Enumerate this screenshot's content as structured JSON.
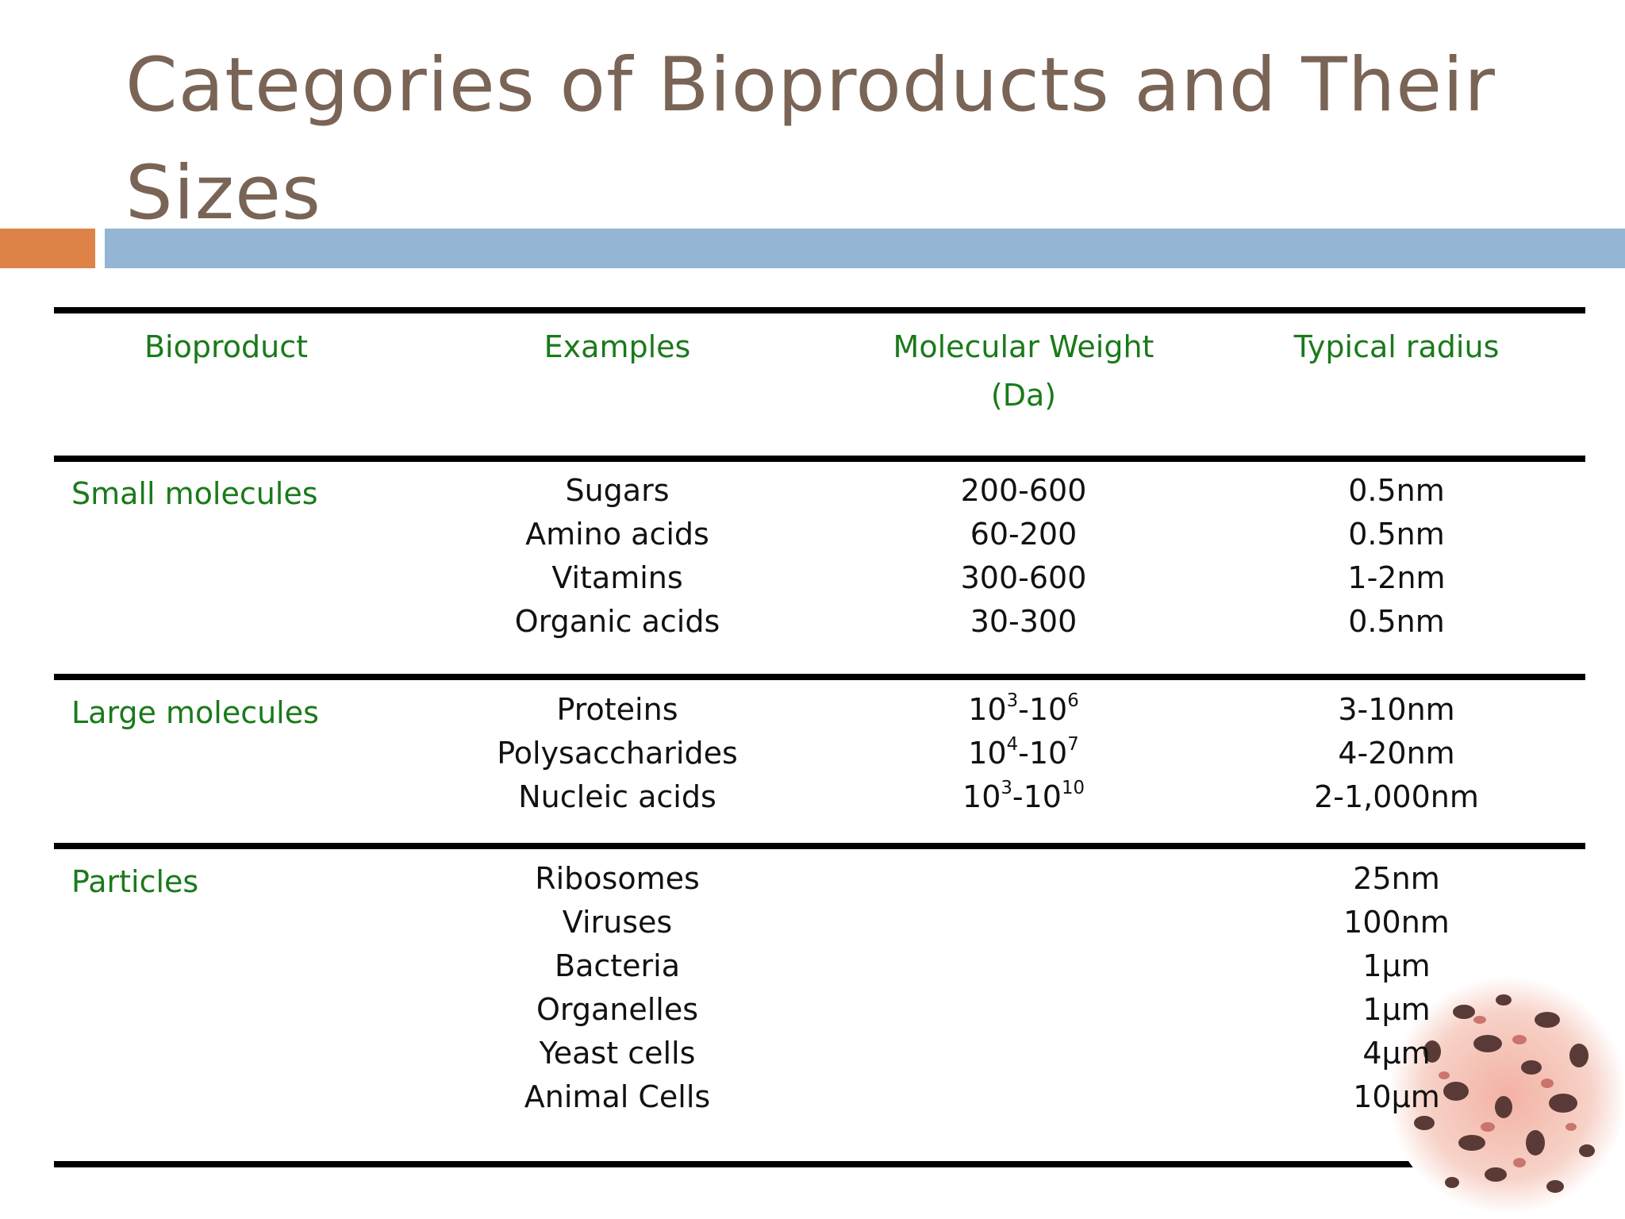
{
  "slide": {
    "title": "Categories of Bioproducts and Their Sizes"
  },
  "colors": {
    "title": "#7a6456",
    "accent_orange": "#dd8347",
    "accent_blue": "#94b5d3",
    "header_green": "#1a7a1a"
  },
  "table": {
    "headers": {
      "bioproduct": "Bioproduct",
      "examples": "Examples",
      "mw_line1": "Molecular Weight",
      "mw_line2": "(Da)",
      "radius": "Typical radius"
    },
    "groups": [
      {
        "category": "Small molecules",
        "rows": [
          {
            "example": "Sugars",
            "mw": "200-600",
            "radius": "0.5nm"
          },
          {
            "example": "Amino acids",
            "mw": "60-200",
            "radius": "0.5nm"
          },
          {
            "example": "Vitamins",
            "mw": "300-600",
            "radius": "1-2nm"
          },
          {
            "example": "Organic acids",
            "mw": "30-300",
            "radius": "0.5nm"
          }
        ]
      },
      {
        "category": "Large molecules",
        "rows": [
          {
            "example": "Proteins",
            "mw_base1": "10",
            "mw_exp1": "3",
            "mw_dash": "-",
            "mw_base2": "10",
            "mw_exp2": "6",
            "radius": "3-10nm"
          },
          {
            "example": "Polysaccharides",
            "mw_base1": "10",
            "mw_exp1": "4",
            "mw_dash": "-",
            "mw_base2": "10",
            "mw_exp2": "7",
            "radius": "4-20nm"
          },
          {
            "example": "Nucleic acids",
            "mw_base1": "10",
            "mw_exp1": "3",
            "mw_dash": "-",
            "mw_base2": "10",
            "mw_exp2": "10",
            "radius": "2-1,000nm"
          }
        ]
      },
      {
        "category": "Particles",
        "rows": [
          {
            "example": "Ribosomes",
            "radius": "25nm"
          },
          {
            "example": "Viruses",
            "radius": "100nm"
          },
          {
            "example": "Bacteria",
            "radius": "1μm"
          },
          {
            "example": "Organelles",
            "radius": "1μm"
          },
          {
            "example": "Yeast cells",
            "radius": "4μm"
          },
          {
            "example": "Animal Cells",
            "radius": "10μm"
          }
        ]
      }
    ]
  }
}
